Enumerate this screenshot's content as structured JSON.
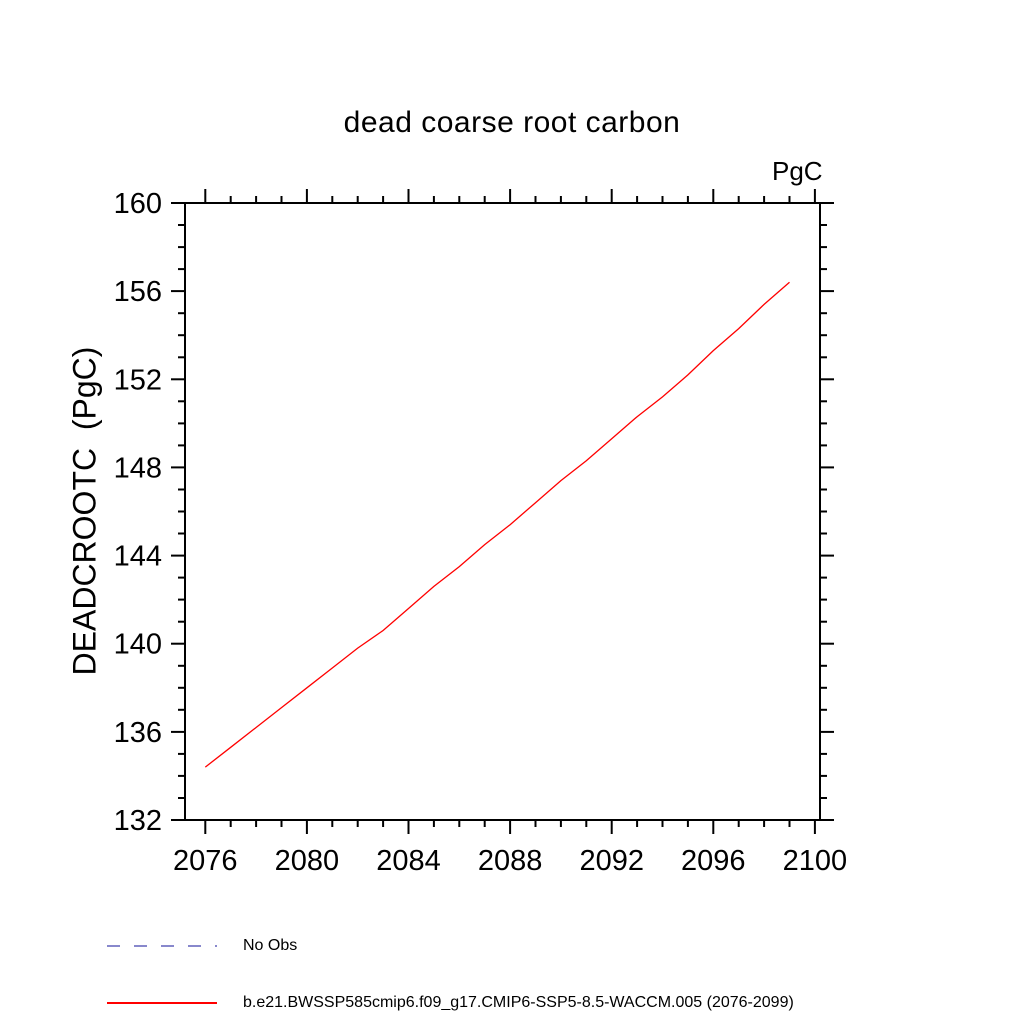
{
  "chart_data": {
    "type": "line",
    "title": "dead coarse root carbon",
    "unit": "PgC",
    "xlabel": "",
    "ylabel": "DEADCROOTC  (PgC)",
    "xlim": [
      2075.2,
      2100.2
    ],
    "ylim": [
      132,
      160
    ],
    "xticks_major": [
      2076,
      2080,
      2084,
      2088,
      2092,
      2096,
      2100
    ],
    "xtick_minor_step": 1,
    "yticks_major": [
      132,
      136,
      140,
      144,
      148,
      152,
      156,
      160
    ],
    "ytick_minor_step": 1,
    "grid": false,
    "x": [
      2076,
      2077,
      2078,
      2079,
      2080,
      2081,
      2082,
      2083,
      2084,
      2085,
      2086,
      2087,
      2088,
      2089,
      2090,
      2091,
      2092,
      2093,
      2094,
      2095,
      2096,
      2097,
      2098,
      2099
    ],
    "series": [
      {
        "name": "b.e21.BWSSP585cmip6.f09_g17.CMIP6-SSP5-8.5-WACCM.005 (2076-2099)",
        "color": "#ff0000",
        "style": "solid",
        "values": [
          134.4,
          135.3,
          136.2,
          137.1,
          138.0,
          138.9,
          139.8,
          140.6,
          141.6,
          142.6,
          143.5,
          144.5,
          145.4,
          146.4,
          147.4,
          148.3,
          149.3,
          150.3,
          151.2,
          152.2,
          153.3,
          154.3,
          155.4,
          156.4
        ]
      }
    ]
  },
  "legend": {
    "items": [
      {
        "label": "No Obs",
        "color": "#8888cc",
        "style": "dashed"
      },
      {
        "label": "b.e21.BWSSP585cmip6.f09_g17.CMIP6-SSP5-8.5-WACCM.005 (2076-2099)",
        "color": "#ff0000",
        "style": "solid"
      }
    ]
  }
}
